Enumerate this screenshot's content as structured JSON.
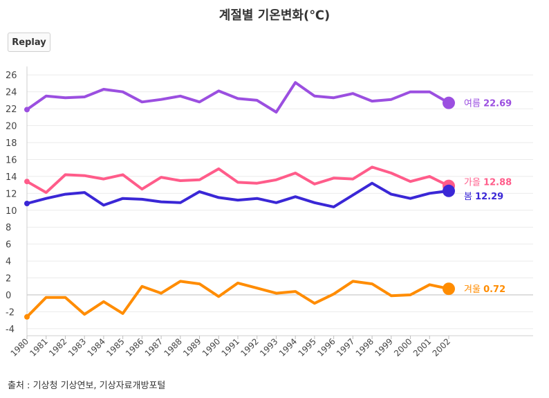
{
  "chart_data": {
    "type": "line",
    "title": "계절별 기온변화(℃)",
    "x": [
      1980,
      1981,
      1982,
      1983,
      1984,
      1985,
      1986,
      1987,
      1988,
      1989,
      1990,
      1991,
      1992,
      1993,
      1994,
      1995,
      1996,
      1997,
      1998,
      1999,
      2000,
      2001,
      2002
    ],
    "x_tick_labels": [
      "1980",
      "1981",
      "1982",
      "1983",
      "1984",
      "1985",
      "1986",
      "1987",
      "1988",
      "1989",
      "1990",
      "1991",
      "1992",
      "1993",
      "1994",
      "1995",
      "1996",
      "1997",
      "1998",
      "1999",
      "2000",
      "2001",
      "2002"
    ],
    "ylim": [
      -4.5,
      27
    ],
    "y_ticks": [
      -4,
      -2,
      0,
      2,
      4,
      6,
      8,
      10,
      12,
      14,
      16,
      18,
      20,
      22,
      24,
      26
    ],
    "y_tick_labels": [
      "-4",
      "-2",
      "0",
      "2",
      "4",
      "6",
      "8",
      "10",
      "12",
      "14",
      "16",
      "18",
      "20",
      "22",
      "24",
      "26"
    ],
    "grid": true,
    "legend": "end-labels",
    "series": [
      {
        "name": "여름",
        "value_label": "22.69",
        "color": "#9b4fe0",
        "values": [
          21.9,
          23.5,
          23.3,
          23.4,
          24.3,
          24.0,
          22.8,
          23.1,
          23.5,
          22.8,
          24.1,
          23.2,
          23.0,
          21.6,
          25.1,
          23.5,
          23.3,
          23.8,
          22.9,
          23.1,
          24.0,
          24.0,
          22.69
        ]
      },
      {
        "name": "가을",
        "value_label": "12.88",
        "color": "#ff5c8a",
        "values": [
          13.4,
          12.1,
          14.2,
          14.1,
          13.7,
          14.2,
          12.5,
          13.9,
          13.5,
          13.6,
          14.9,
          13.3,
          13.2,
          13.6,
          14.4,
          13.1,
          13.8,
          13.7,
          15.1,
          14.4,
          13.4,
          14.0,
          12.88
        ]
      },
      {
        "name": "봄",
        "value_label": "12.29",
        "color": "#3a27d6",
        "values": [
          10.8,
          11.4,
          11.9,
          12.1,
          10.6,
          11.4,
          11.3,
          11.0,
          10.9,
          12.2,
          11.5,
          11.2,
          11.4,
          10.9,
          11.6,
          10.9,
          10.4,
          11.8,
          13.2,
          11.9,
          11.4,
          12.0,
          12.29
        ]
      },
      {
        "name": "겨울",
        "value_label": "0.72",
        "color": "#ff8c00",
        "values": [
          -2.6,
          -0.3,
          -0.3,
          -2.3,
          -0.8,
          -2.2,
          1.0,
          0.2,
          1.6,
          1.3,
          -0.2,
          1.4,
          0.8,
          0.2,
          0.4,
          -1.0,
          0.1,
          1.6,
          1.3,
          -0.1,
          0.0,
          1.2,
          0.72
        ]
      }
    ]
  },
  "controls": {
    "replay_label": "Replay"
  },
  "footer": {
    "source": "출처 : 기상청 기상연보, 기상자료개방포털"
  }
}
